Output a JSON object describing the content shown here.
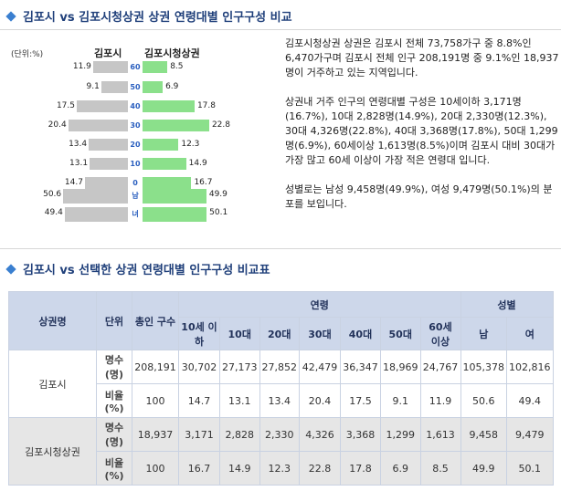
{
  "section1": {
    "title": "김포시 vs 김포시청상권 상권 연령대별 인구구성 비교",
    "unit": "(단위:%)",
    "legend_left": "김포시",
    "legend_right": "김포시청상권"
  },
  "pyramid": {
    "rows": [
      {
        "age": "60",
        "left": "11.9",
        "right": "8.5"
      },
      {
        "age": "50",
        "left": "9.1",
        "right": "6.9"
      },
      {
        "age": "40",
        "left": "17.5",
        "right": "17.8"
      },
      {
        "age": "30",
        "left": "20.4",
        "right": "22.8"
      },
      {
        "age": "20",
        "left": "13.4",
        "right": "12.3"
      },
      {
        "age": "10",
        "left": "13.1",
        "right": "14.9"
      },
      {
        "age": "0",
        "left": "14.7",
        "right": "16.7"
      },
      {
        "age": "남",
        "left": "50.6",
        "right": "49.9"
      },
      {
        "age": "녀",
        "left": "49.4",
        "right": "50.1"
      }
    ]
  },
  "description": {
    "p1": "김포시청상권 상권은 김포시 전체 73,758가구 중 8.8%인 6,470가구며 김포시 전체 인구 208,191명 중 9.1%인 18,937명이 거주하고 있는 지역입니다.",
    "p2": "상권내 거주 인구의 연령대별 구성은 10세이하 3,171명(16.7%), 10대 2,828명(14.9%), 20대 2,330명(12.3%), 30대 4,326명(22.8%), 40대 3,368명(17.8%), 50대 1,299명(6.9%), 60세이상 1,613명(8.5%)이며 김포시 대비 30대가 가장 많고 60세 이상이 가장 적은 연령대 입니다.",
    "p3": "성별로는 남성 9,458명(49.9%), 여성 9,479명(50.1%)의 분포를 보입니다."
  },
  "section2": {
    "title": "김포시 vs 선택한 상권 연령대별 인구구성 비교표"
  },
  "table": {
    "h_region": "상권명",
    "h_unit": "단위",
    "h_total": "총인 구수",
    "h_age": "연령",
    "h_gender": "성별",
    "ages": [
      "10세 이하",
      "10대",
      "20대",
      "30대",
      "40대",
      "50대",
      "60세 이상"
    ],
    "genders": [
      "남",
      "여"
    ],
    "regions": [
      {
        "name": "김포시",
        "count_label": "명수 (명)",
        "count": [
          "208,191",
          "30,702",
          "27,173",
          "27,852",
          "42,479",
          "36,347",
          "18,969",
          "24,767",
          "105,378",
          "102,816"
        ],
        "ratio_label": "비율 (%)",
        "ratio": [
          "100",
          "14.7",
          "13.1",
          "13.4",
          "20.4",
          "17.5",
          "9.1",
          "11.9",
          "50.6",
          "49.4"
        ]
      },
      {
        "name": "김포시청상권",
        "count_label": "명수 (명)",
        "count": [
          "18,937",
          "3,171",
          "2,828",
          "2,330",
          "4,326",
          "3,368",
          "1,299",
          "1,613",
          "9,458",
          "9,479"
        ],
        "ratio_label": "비율 (%)",
        "ratio": [
          "100",
          "16.7",
          "14.9",
          "12.3",
          "22.8",
          "17.8",
          "6.9",
          "8.5",
          "49.9",
          "50.1"
        ]
      }
    ]
  },
  "colors": {
    "left_bar": "#c6c6c6",
    "right_bar": "#8be08b",
    "header": "#cdd7ea",
    "title": "#1f3f7a"
  }
}
